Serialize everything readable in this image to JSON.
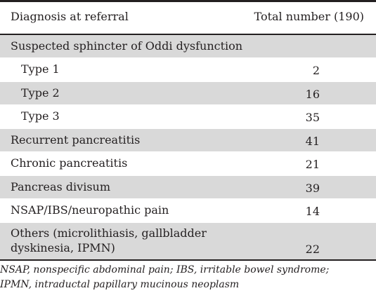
{
  "header": {
    "col1": "Diagnosis at referral",
    "col2": "Total number (190)"
  },
  "rows": [
    {
      "label": "Suspected sphincter of Oddi dysfunction",
      "value": ""
    },
    {
      "label": "Type 1",
      "value": "2"
    },
    {
      "label": "Type 2",
      "value": "16"
    },
    {
      "label": "Type 3",
      "value": "35"
    },
    {
      "label": "Recurrent pancreatitis",
      "value": "41"
    },
    {
      "label": "Chronic pancreatitis",
      "value": "21"
    },
    {
      "label": "Pancreas divisum",
      "value": "39"
    },
    {
      "label": "NSAP/IBS/neuropathic pain",
      "value": "14"
    },
    {
      "label": "Others (microlithiasis, gallbladder dyskinesia, IPMN)",
      "label_line1": "Others (microlithiasis, gallbladder",
      "label_line2": "dyskinesia, IPMN)",
      "value": "22"
    }
  ],
  "footnote": {
    "line1": "NSAP, nonspecific abdominal pain; IBS, irritable bowel syndrome;",
    "line2": "IPMN, intraductal papillary mucinous neoplasm"
  }
}
